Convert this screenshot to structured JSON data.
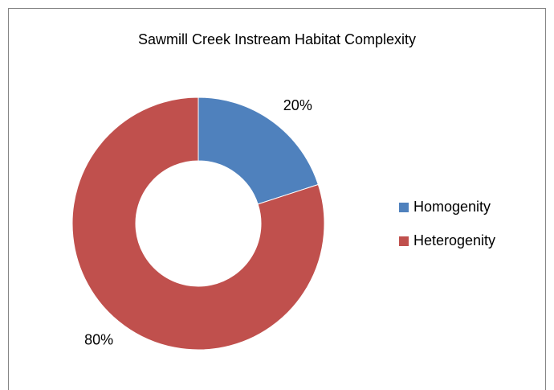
{
  "chart_data": {
    "type": "donut",
    "title": "Sawmill Creek Instream Habitat Complexity",
    "categories": [
      "Homogenity",
      "Heterogenity"
    ],
    "values": [
      20,
      80
    ],
    "value_labels": [
      "20%",
      "80%"
    ],
    "colors": [
      "#4f81bd",
      "#c0504d"
    ],
    "legend": "right"
  }
}
